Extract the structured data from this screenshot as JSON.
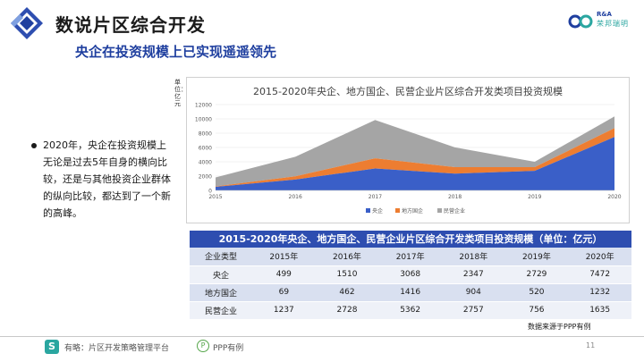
{
  "header": {
    "title": "数说片区综合开发",
    "subtitle": "央企在投资规模上已实现遥遥领先",
    "brand_top": "R&A",
    "brand_bottom": "荣邦瑞明"
  },
  "bullet": {
    "text": "2020年，央企在投资规模上无论是过去5年自身的横向比较，还是与其他投资企业群体的纵向比较，都达到了一个新的高峰。"
  },
  "colors": {
    "central_soe": "#3a5fc8",
    "local_soe": "#ed7d31",
    "private": "#a5a5a5",
    "accent_blue": "#2e4eb0",
    "teal": "#2aa6a0"
  },
  "chart_data": {
    "type": "area",
    "title": "2015-2020年央企、地方国企、民营企业片区综合开发类项目投资规模",
    "ylabel": "单位：亿元",
    "x": [
      "2015",
      "2016",
      "2017",
      "2018",
      "2019",
      "2020"
    ],
    "ylim": [
      0,
      12000
    ],
    "yticks": [
      "0",
      "2000",
      "4000",
      "6000",
      "8000",
      "10000",
      "12000"
    ],
    "stacked": true,
    "grid": true,
    "legend_position": "bottom",
    "series": [
      {
        "name": "央企",
        "values": [
          499,
          1510,
          3068,
          2347,
          2729,
          7472
        ]
      },
      {
        "name": "地方国企",
        "values": [
          69,
          462,
          1416,
          904,
          520,
          1232
        ]
      },
      {
        "name": "民营企业",
        "values": [
          1237,
          2728,
          5362,
          2757,
          756,
          1635
        ]
      }
    ]
  },
  "table": {
    "title": "2015-2020年央企、地方国企、民营企业片区综合开发类项目投资规模（单位：亿元）",
    "headers": [
      "企业类型",
      "2015年",
      "2016年",
      "2017年",
      "2018年",
      "2019年",
      "2020年"
    ],
    "rows": [
      [
        "央企",
        "499",
        "1510",
        "3068",
        "2347",
        "2729",
        "7472"
      ],
      [
        "地方国企",
        "69",
        "462",
        "1416",
        "904",
        "520",
        "1232"
      ],
      [
        "民营企业",
        "1237",
        "2728",
        "5362",
        "2757",
        "756",
        "1635"
      ]
    ]
  },
  "source": "数据来源于PPP有例",
  "footer": {
    "logo_glyph": "S",
    "text": "有略：片区开发策略管理平台",
    "icon_glyph": "P",
    "text2": "PPP有例",
    "page": "11"
  }
}
